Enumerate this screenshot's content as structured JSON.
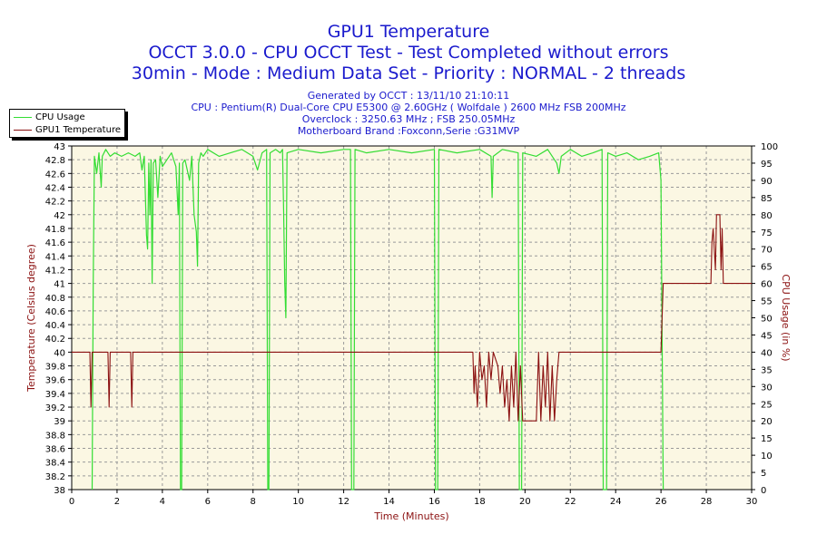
{
  "header": {
    "title": "GPU1 Temperature",
    "line2": "OCCT 3.0.0 - CPU OCCT Test - Test Completed without errors",
    "line3": "30min - Mode : Medium Data Set - Priority : NORMAL - 2 threads",
    "generated": "Generated by OCCT : 13/11/10 21:10:11",
    "cpu": "CPU : Pentium(R) Dual-Core CPU E5300 @ 2.60GHz ( Wolfdale ) 2600 MHz FSB 200MHz",
    "overclock": "Overclock : 3250.63 MHz ; FSB 250.05MHz",
    "motherboard": "Motherboard Brand :Foxconn,Serie :G31MVP"
  },
  "colors": {
    "plot_bg": "#fbf7e3",
    "grid": "#9a9a9a",
    "cpu_line": "#33dd33",
    "gpu_line": "#8b1010",
    "axis_label": "#8b1010",
    "title": "#1a1acd"
  },
  "chart_data": {
    "type": "line",
    "xlabel": "Time (Minutes)",
    "ylabel_left": "Temperature (Celsius degree)",
    "ylabel_right": "CPU Usage (in %)",
    "xlim": [
      0,
      30
    ],
    "ylim_left": [
      38,
      43
    ],
    "ylim_right": [
      0,
      100
    ],
    "x_ticks": [
      0,
      2,
      4,
      6,
      8,
      10,
      12,
      14,
      16,
      18,
      20,
      22,
      24,
      26,
      28,
      30
    ],
    "y_left_ticks": [
      "38",
      "38.2",
      "38.4",
      "38.6",
      "38.8",
      "39",
      "39.2",
      "39.4",
      "39.6",
      "39.8",
      "40",
      "40.2",
      "40.4",
      "40.6",
      "40.8",
      "41",
      "41.2",
      "41.4",
      "41.6",
      "41.8",
      "42",
      "42.2",
      "42.4",
      "42.6",
      "42.8",
      "43"
    ],
    "y_right_ticks": [
      0,
      5,
      10,
      15,
      20,
      25,
      30,
      35,
      40,
      45,
      50,
      55,
      60,
      65,
      70,
      75,
      80,
      85,
      90,
      95,
      100
    ],
    "grid": true,
    "legend_position": "top-left",
    "series": [
      {
        "name": "CPU Usage",
        "axis": "right",
        "points": [
          [
            0.9,
            0
          ],
          [
            0.95,
            60
          ],
          [
            1.0,
            97
          ],
          [
            1.1,
            92
          ],
          [
            1.2,
            98
          ],
          [
            1.3,
            88
          ],
          [
            1.35,
            97
          ],
          [
            1.5,
            99
          ],
          [
            1.7,
            97
          ],
          [
            1.9,
            98
          ],
          [
            2.2,
            97
          ],
          [
            2.5,
            98
          ],
          [
            2.8,
            97
          ],
          [
            3.0,
            98
          ],
          [
            3.1,
            93
          ],
          [
            3.2,
            97
          ],
          [
            3.3,
            74
          ],
          [
            3.35,
            70
          ],
          [
            3.4,
            95
          ],
          [
            3.45,
            80
          ],
          [
            3.5,
            96
          ],
          [
            3.55,
            60
          ],
          [
            3.6,
            95
          ],
          [
            3.7,
            96
          ],
          [
            3.8,
            85
          ],
          [
            3.9,
            97
          ],
          [
            4.0,
            94
          ],
          [
            4.2,
            96
          ],
          [
            4.4,
            98
          ],
          [
            4.6,
            94
          ],
          [
            4.7,
            80
          ],
          [
            4.75,
            95
          ],
          [
            4.8,
            0
          ],
          [
            4.85,
            0
          ],
          [
            4.9,
            95
          ],
          [
            5.0,
            96
          ],
          [
            5.2,
            90
          ],
          [
            5.3,
            97
          ],
          [
            5.4,
            80
          ],
          [
            5.5,
            75
          ],
          [
            5.55,
            65
          ],
          [
            5.6,
            95
          ],
          [
            5.7,
            98
          ],
          [
            5.8,
            97
          ],
          [
            6.0,
            99
          ],
          [
            6.5,
            97
          ],
          [
            7.0,
            98
          ],
          [
            7.5,
            99
          ],
          [
            8.0,
            97
          ],
          [
            8.2,
            93
          ],
          [
            8.4,
            98
          ],
          [
            8.6,
            99
          ],
          [
            8.65,
            0
          ],
          [
            8.7,
            0
          ],
          [
            8.75,
            98
          ],
          [
            9.0,
            99
          ],
          [
            9.2,
            98
          ],
          [
            9.3,
            99
          ],
          [
            9.35,
            82
          ],
          [
            9.4,
            60
          ],
          [
            9.45,
            50
          ],
          [
            9.5,
            98
          ],
          [
            10.0,
            99
          ],
          [
            11.0,
            98
          ],
          [
            12.0,
            99
          ],
          [
            12.3,
            99
          ],
          [
            12.35,
            0
          ],
          [
            12.45,
            0
          ],
          [
            12.5,
            99
          ],
          [
            13.0,
            98
          ],
          [
            14.0,
            99
          ],
          [
            15.0,
            98
          ],
          [
            16.0,
            99
          ],
          [
            16.05,
            0
          ],
          [
            16.15,
            0
          ],
          [
            16.2,
            99
          ],
          [
            17.0,
            98
          ],
          [
            18.0,
            99
          ],
          [
            18.5,
            97
          ],
          [
            18.55,
            85
          ],
          [
            18.6,
            97
          ],
          [
            19.0,
            99
          ],
          [
            19.7,
            98
          ],
          [
            19.75,
            0
          ],
          [
            19.85,
            0
          ],
          [
            19.9,
            98
          ],
          [
            20.5,
            97
          ],
          [
            21.0,
            99
          ],
          [
            21.4,
            95
          ],
          [
            21.5,
            92
          ],
          [
            21.6,
            97
          ],
          [
            22.0,
            99
          ],
          [
            22.5,
            97
          ],
          [
            23.0,
            98
          ],
          [
            23.4,
            99
          ],
          [
            23.45,
            0
          ],
          [
            23.6,
            0
          ],
          [
            23.65,
            98
          ],
          [
            24.0,
            97
          ],
          [
            24.5,
            98
          ],
          [
            25.0,
            96
          ],
          [
            25.5,
            97
          ],
          [
            25.9,
            98
          ],
          [
            26.0,
            90
          ],
          [
            26.1,
            0
          ]
        ]
      },
      {
        "name": "GPU1 Temperature",
        "axis": "left",
        "points": [
          [
            0,
            40
          ],
          [
            0.8,
            40
          ],
          [
            0.85,
            39.2
          ],
          [
            0.9,
            40
          ],
          [
            1.6,
            40
          ],
          [
            1.65,
            39.2
          ],
          [
            1.7,
            40
          ],
          [
            2.6,
            40
          ],
          [
            2.65,
            39.2
          ],
          [
            2.7,
            40
          ],
          [
            17.7,
            40
          ],
          [
            17.75,
            39.4
          ],
          [
            17.8,
            39.8
          ],
          [
            17.9,
            39.2
          ],
          [
            18.0,
            40
          ],
          [
            18.1,
            39.6
          ],
          [
            18.2,
            39.8
          ],
          [
            18.3,
            39.2
          ],
          [
            18.4,
            40
          ],
          [
            18.5,
            39.6
          ],
          [
            18.6,
            40
          ],
          [
            18.8,
            39.8
          ],
          [
            18.9,
            39.4
          ],
          [
            19.0,
            39.8
          ],
          [
            19.1,
            39.2
          ],
          [
            19.2,
            39.6
          ],
          [
            19.3,
            39
          ],
          [
            19.4,
            39.8
          ],
          [
            19.5,
            39.2
          ],
          [
            19.6,
            40
          ],
          [
            19.7,
            39
          ],
          [
            19.8,
            39.8
          ],
          [
            19.9,
            39
          ],
          [
            20.0,
            39
          ],
          [
            20.5,
            39
          ],
          [
            20.6,
            40
          ],
          [
            20.7,
            39
          ],
          [
            20.8,
            39.8
          ],
          [
            20.9,
            39.2
          ],
          [
            21.0,
            40
          ],
          [
            21.1,
            39
          ],
          [
            21.2,
            39.8
          ],
          [
            21.3,
            39
          ],
          [
            21.4,
            39.6
          ],
          [
            21.5,
            40
          ],
          [
            22.0,
            40
          ],
          [
            26.0,
            40
          ],
          [
            26.1,
            41
          ],
          [
            28.2,
            41
          ],
          [
            28.25,
            41.6
          ],
          [
            28.3,
            41.8
          ],
          [
            28.4,
            41.2
          ],
          [
            28.45,
            42
          ],
          [
            28.6,
            42
          ],
          [
            28.65,
            41.2
          ],
          [
            28.7,
            41.8
          ],
          [
            28.75,
            41
          ],
          [
            30,
            41
          ]
        ]
      }
    ]
  }
}
